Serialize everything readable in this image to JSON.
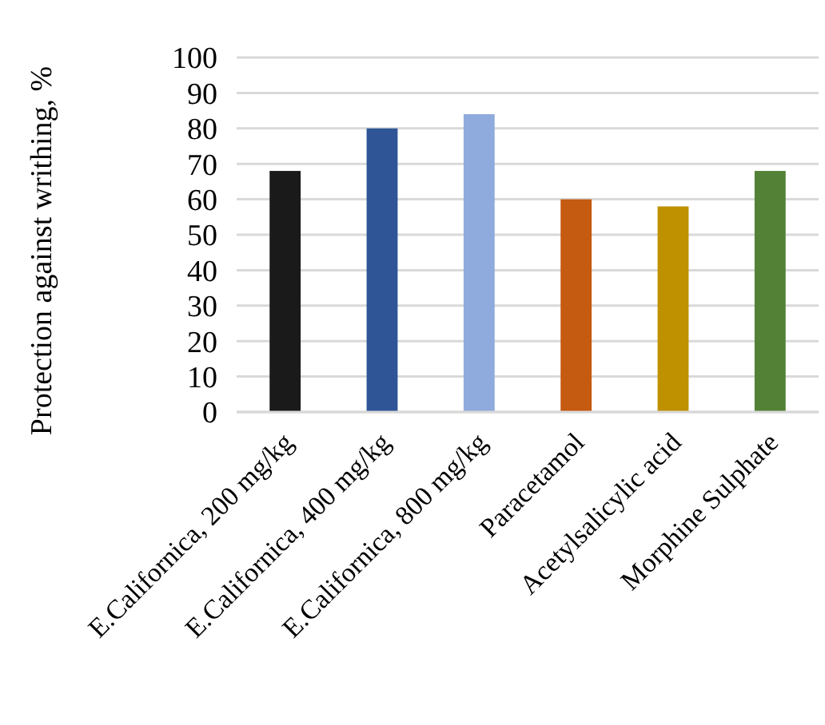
{
  "chart_data": {
    "type": "bar",
    "ylabel": "Protection against writhing, %",
    "categories": [
      "E.Californica, 200 mg/kg",
      "E.Californica, 400 mg/kg",
      "E.Californica, 800 mg/kg",
      "Paracetamol",
      "Acetylsalicylic acid",
      "Morphine Sulphate"
    ],
    "values": [
      68,
      80,
      84,
      60,
      58,
      68
    ],
    "colors": [
      "#1a1a1a",
      "#2f5597",
      "#8faadc",
      "#c55a11",
      "#bf9000",
      "#538135"
    ],
    "ylim": [
      0,
      100
    ],
    "yticks": [
      0,
      10,
      20,
      30,
      40,
      50,
      60,
      70,
      80,
      90,
      100
    ],
    "grid": "y"
  }
}
